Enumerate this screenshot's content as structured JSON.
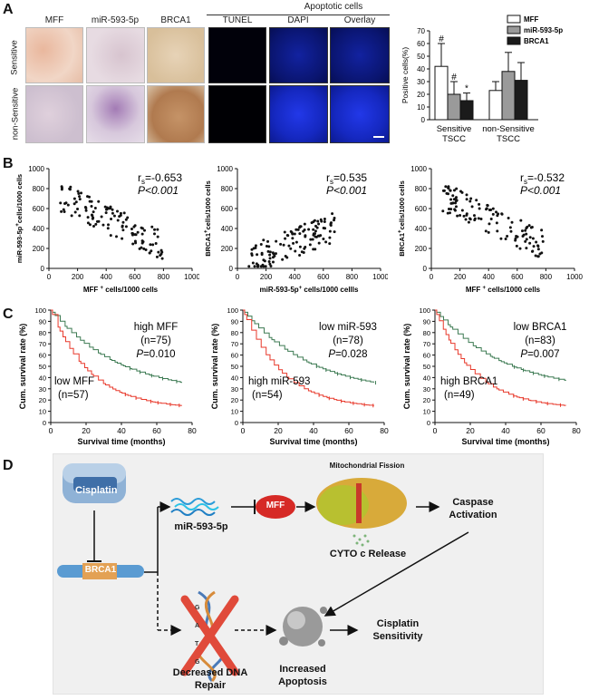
{
  "panels": {
    "a": "A",
    "b": "B",
    "c": "C",
    "d": "D"
  },
  "panel_a": {
    "columns": [
      "MFF",
      "miR-593-5p",
      "BRCA1",
      "TUNEL",
      "DAPI",
      "Overlay"
    ],
    "apoptotic_header": "Apoptotic cells",
    "rows": [
      "Sensitive",
      "non-Sensitive"
    ]
  },
  "colors": {
    "mff": "#ffffff",
    "mir": "#9a9a9a",
    "brca": "#1b1b1b",
    "high_curve": "#e8392b",
    "low_curve": "#3c7a52",
    "ihc_sensitive": "#e8c4ae",
    "ihc_nonsens": "#dccbd6",
    "fluor_dark": "#000010",
    "fluor_blue": "#1a2fd0"
  },
  "annotations": {
    "rs_label": "r",
    "rs_sub": "s",
    "p_italic": "P",
    "mff_cells_suffix": "cells/1000 cells",
    "mir_cells_suffix": "cells/1000 cellls",
    "brca_cells_suffix": "cells/1000 cells"
  },
  "chart_data": [
    {
      "type": "bar",
      "title": "",
      "ylabel": "Positive cells(%)",
      "ylim": [
        0,
        70
      ],
      "yticks": [
        "0",
        "10",
        "20",
        "30",
        "40",
        "50",
        "60",
        "70"
      ],
      "categories": [
        "Sensitive TSCC",
        "non-Sensitive TSCC"
      ],
      "category_lines": [
        [
          "Sensitive",
          "TSCC"
        ],
        [
          "non-Sensitive",
          "TSCC"
        ]
      ],
      "series": [
        {
          "name": "MFF",
          "values": [
            42,
            23
          ],
          "errors": [
            18,
            7
          ],
          "marks": [
            "#",
            ""
          ]
        },
        {
          "name": "miR-593-5p",
          "values": [
            20,
            38
          ],
          "errors": [
            10,
            15
          ],
          "marks": [
            "#",
            ""
          ]
        },
        {
          "name": "BRCA1",
          "values": [
            15,
            31
          ],
          "errors": [
            6,
            14
          ],
          "marks": [
            "*",
            ""
          ]
        }
      ],
      "legend": "top-right"
    },
    {
      "type": "scatter",
      "xlabel": "MFF",
      "ylabel": "miR-593-5p",
      "xlim": [
        0,
        1000
      ],
      "ylim": [
        0,
        1000
      ],
      "xticks": [
        "0",
        "200",
        "400",
        "600",
        "800",
        "1000"
      ],
      "yticks": [
        "0",
        "200",
        "400",
        "600",
        "800",
        "1000"
      ],
      "rs": "=-0.653",
      "p": "<0.001",
      "trend": "negative"
    },
    {
      "type": "scatter",
      "xlabel": "miR-593-5p",
      "ylabel": "BRCA1",
      "xlim": [
        0,
        1000
      ],
      "ylim": [
        0,
        1000
      ],
      "xticks": [
        "0",
        "200",
        "400",
        "600",
        "800",
        "1000"
      ],
      "yticks": [
        "0",
        "200",
        "400",
        "600",
        "800",
        "1000"
      ],
      "rs": "=0.535",
      "p": "<0.001",
      "trend": "positive"
    },
    {
      "type": "scatter",
      "xlabel": "MFF",
      "ylabel": "BRCA1",
      "xlim": [
        0,
        1000
      ],
      "ylim": [
        0,
        1000
      ],
      "xticks": [
        "0",
        "200",
        "400",
        "600",
        "800",
        "1000"
      ],
      "yticks": [
        "0",
        "200",
        "400",
        "600",
        "800",
        "1000"
      ],
      "rs": "=-0.532",
      "p": "<0.001",
      "trend": "negative"
    },
    {
      "type": "line",
      "xlabel": "Survival time (months)",
      "ylabel": "Cum. survival rate (%)",
      "xlim": [
        0,
        80
      ],
      "ylim": [
        0,
        100
      ],
      "xticks": [
        "0",
        "20",
        "40",
        "60",
        "80"
      ],
      "yticks": [
        "0",
        "10",
        "20",
        "30",
        "40",
        "50",
        "60",
        "70",
        "80",
        "90",
        "100"
      ],
      "series": [
        {
          "name": "high MFF",
          "n": "(n=75)",
          "end": 25
        },
        {
          "name": "low MFF",
          "n": "(n=57)",
          "end": 12
        }
      ],
      "p": "=0.010"
    },
    {
      "type": "line",
      "xlabel": "Survival time (months)",
      "ylabel": "Cum. survival rate (%)",
      "xlim": [
        0,
        80
      ],
      "ylim": [
        0,
        100
      ],
      "xticks": [
        "0",
        "20",
        "40",
        "60",
        "80"
      ],
      "yticks": [
        "0",
        "10",
        "20",
        "30",
        "40",
        "50",
        "60",
        "70",
        "80",
        "90",
        "100"
      ],
      "series": [
        {
          "name": "low miR-593",
          "n": "(n=78)",
          "end": 25
        },
        {
          "name": "high miR-593",
          "n": "(n=54)",
          "end": 12
        }
      ],
      "p": "=0.028"
    },
    {
      "type": "line",
      "xlabel": "Survival time (months)",
      "ylabel": "Cum. survival rate (%)",
      "xlim": [
        0,
        80
      ],
      "ylim": [
        0,
        100
      ],
      "xticks": [
        "0",
        "20",
        "40",
        "60",
        "80"
      ],
      "yticks": [
        "0",
        "10",
        "20",
        "30",
        "40",
        "50",
        "60",
        "70",
        "80",
        "90",
        "100"
      ],
      "series": [
        {
          "name": "low BRCA1",
          "n": "(n=83)",
          "end": 27
        },
        {
          "name": "high BRCA1",
          "n": "(n=49)",
          "end": 12
        }
      ],
      "p": "=0.007"
    }
  ],
  "diagram": {
    "cisplatin": "Cisplatin",
    "brca1": "BRCA1",
    "mir": "miR-593-5p",
    "mff": "MFF",
    "mito_title": "Mitochondrial Fission",
    "cyto": "CYTO c  Release",
    "caspase": [
      "Caspase",
      "Activation"
    ],
    "dna_repair": [
      "Decreased DNA",
      "Repair"
    ],
    "apoptosis": [
      "Increased",
      "Apoptosis"
    ],
    "sensitivity": [
      "Cisplatin",
      "Sensitivity"
    ],
    "dna_letters": [
      "G",
      "A",
      "T",
      "G"
    ]
  }
}
